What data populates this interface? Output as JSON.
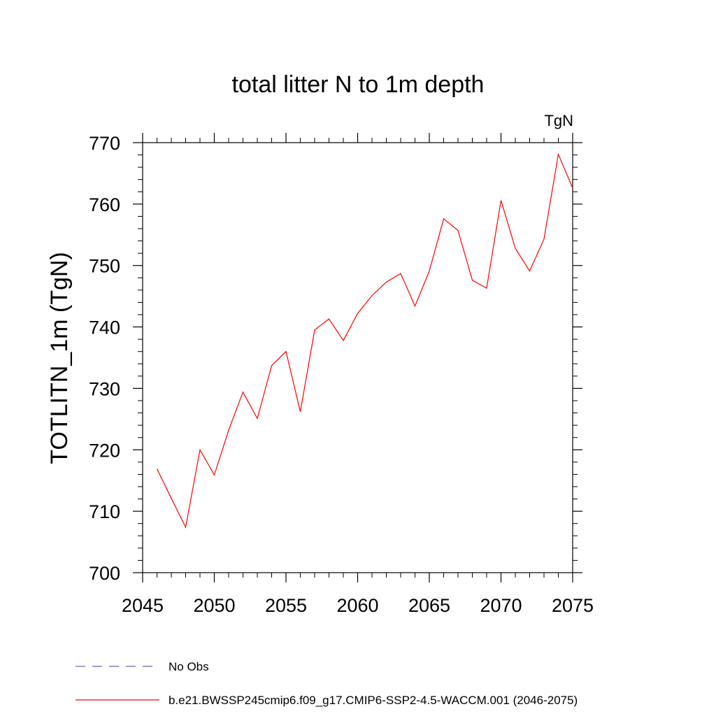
{
  "chart_data": {
    "type": "line",
    "title": "total litter N to 1m depth",
    "units_label": "TgN",
    "ylabel": "TOTLITN_1m  (TgN)",
    "xlabel": "",
    "xlim": [
      2045,
      2075
    ],
    "ylim": [
      700,
      770
    ],
    "x_ticks": [
      "2045",
      "2050",
      "2055",
      "2060",
      "2065",
      "2070",
      "2075"
    ],
    "y_ticks": [
      "700",
      "710",
      "720",
      "730",
      "740",
      "750",
      "760",
      "770"
    ],
    "grid": false,
    "legend_position": "bottom",
    "series": [
      {
        "name": "b.e21.BWSSP245cmip6.f09_g17.CMIP6-SSP2-4.5-WACCM.001 (2046-2075)",
        "color": "#ff0000",
        "style": "solid",
        "x": [
          2046,
          2047,
          2048,
          2049,
          2050,
          2051,
          2052,
          2053,
          2054,
          2055,
          2056,
          2057,
          2058,
          2059,
          2060,
          2061,
          2062,
          2063,
          2064,
          2065,
          2066,
          2067,
          2068,
          2069,
          2070,
          2071,
          2072,
          2073,
          2074,
          2075
        ],
        "values": [
          716.9,
          712.1,
          707.4,
          720.0,
          715.9,
          723.2,
          729.4,
          725.1,
          733.7,
          736.0,
          726.2,
          739.5,
          741.3,
          737.8,
          742.2,
          745.1,
          747.3,
          748.7,
          743.4,
          749.1,
          757.6,
          755.7,
          747.6,
          746.3,
          760.6,
          752.8,
          749.1,
          754.3,
          768.1,
          762.6
        ]
      },
      {
        "name": "No Obs",
        "color": "#6666aa",
        "style": "dashed",
        "x": [],
        "values": []
      }
    ]
  }
}
